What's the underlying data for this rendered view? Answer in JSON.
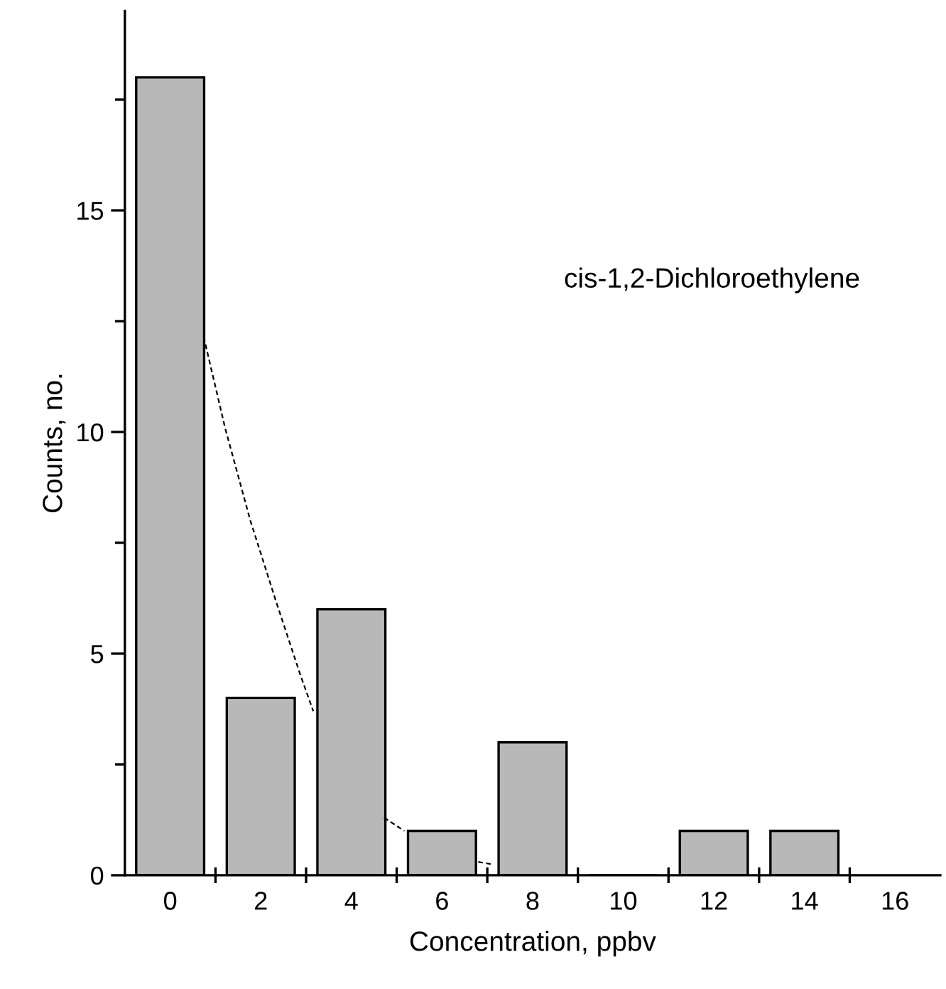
{
  "chart_data": {
    "type": "bar",
    "xlabel": "Concentration, ppbv",
    "ylabel": "Counts, no.",
    "x": [
      0,
      2,
      4,
      6,
      8,
      10,
      12,
      14
    ],
    "series": [
      {
        "color": "#b8b8b8",
        "values": [
          18,
          4,
          6,
          1,
          3,
          0,
          1,
          1
        ]
      },
      {
        "type": "line",
        "color": "#000000",
        "line_style": "dashed",
        "x": [
          0.74,
          1.21,
          1.77,
          2.33,
          2.88,
          3.16,
          4.0,
          4.72,
          5.17,
          6.0,
          6.8,
          7.1
        ],
        "values": [
          12.15,
          10.1,
          8.0,
          6.2,
          4.5,
          3.7,
          null,
          1.3,
          1.0,
          null,
          0.3,
          0.25
        ]
      }
    ],
    "annotations": [
      "cis-1,2-Dichloroethylene"
    ],
    "xlim": [
      -1,
      17
    ],
    "ylim": [
      0,
      19.5
    ],
    "xticks": [
      {
        "value": 0,
        "label": "0"
      },
      {
        "value": 1,
        "label": null
      },
      {
        "value": 2,
        "label": "2"
      },
      {
        "value": 3,
        "label": null
      },
      {
        "value": 4,
        "label": "4"
      },
      {
        "value": 5,
        "label": null
      },
      {
        "value": 6,
        "label": "6"
      },
      {
        "value": 7,
        "label": null
      },
      {
        "value": 8,
        "label": "8"
      },
      {
        "value": 9,
        "label": null
      },
      {
        "value": 10,
        "label": "10"
      },
      {
        "value": 11,
        "label": null
      },
      {
        "value": 12,
        "label": "12"
      },
      {
        "value": 13,
        "label": null
      },
      {
        "value": 14,
        "label": "14"
      },
      {
        "value": 15,
        "label": null
      },
      {
        "value": 16,
        "label": "16"
      }
    ],
    "yticks": [
      0,
      {
        "value": 2.5,
        "label": null
      },
      5,
      {
        "value": 7.5,
        "label": null
      },
      10,
      {
        "value": 12.5,
        "label": null
      },
      15,
      {
        "value": 17.5,
        "label": null
      }
    ],
    "grid": false,
    "legend": false
  }
}
